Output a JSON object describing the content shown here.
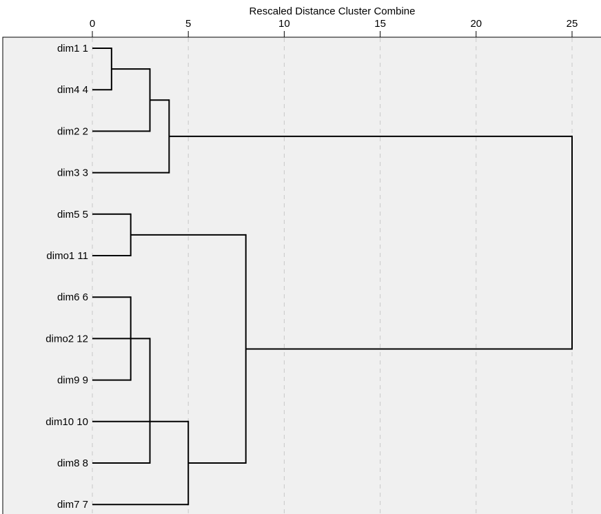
{
  "chart_data": {
    "type": "dendrogram",
    "title": "",
    "xlabel": "Rescaled Distance Cluster Combine",
    "ylabel": "",
    "xlim": [
      0,
      25
    ],
    "x_ticks": [
      0,
      5,
      10,
      15,
      20,
      25
    ],
    "x_tick_labels": [
      "0",
      "5",
      "10",
      "15",
      "20",
      "25"
    ],
    "grid": "vertical-dashed",
    "leaves": [
      {
        "label": "dim1 1",
        "id": "L1"
      },
      {
        "label": "dim4 4",
        "id": "L2"
      },
      {
        "label": "dim2 2",
        "id": "L3"
      },
      {
        "label": "dim3 3",
        "id": "L4"
      },
      {
        "label": "dim5 5",
        "id": "L5"
      },
      {
        "label": "dimo1 11",
        "id": "L6"
      },
      {
        "label": "dim6 6",
        "id": "L7"
      },
      {
        "label": "dimo2 12",
        "id": "L8"
      },
      {
        "label": "dim9 9",
        "id": "L9"
      },
      {
        "label": "dim10 10",
        "id": "L10"
      },
      {
        "label": "dim8 8",
        "id": "L11"
      },
      {
        "label": "dim7 7",
        "id": "L12"
      }
    ],
    "merges": [
      {
        "id": "C1",
        "children": [
          "L1",
          "L2"
        ],
        "distance": 1
      },
      {
        "id": "C2",
        "children": [
          "L7",
          "L9"
        ],
        "distance": 2
      },
      {
        "id": "C3",
        "children": [
          "L5",
          "L6"
        ],
        "distance": 2
      },
      {
        "id": "C4",
        "children": [
          "C1",
          "L3"
        ],
        "distance": 3
      },
      {
        "id": "C5",
        "children": [
          "L8",
          "L11"
        ],
        "distance": 3
      },
      {
        "id": "C6",
        "children": [
          "C4",
          "L4"
        ],
        "distance": 4
      },
      {
        "id": "C7",
        "children": [
          "L10",
          "L12"
        ],
        "distance": 5
      },
      {
        "id": "C8",
        "children": [
          "C3",
          "C7"
        ],
        "distance": 8
      },
      {
        "id": "C9",
        "children": [
          "C6",
          "C8"
        ],
        "distance": 25
      }
    ],
    "colors": {
      "plot_background": "#f0f0f0",
      "line": "#000000",
      "grid": "#c8c8c8",
      "frame": "#000000"
    }
  }
}
